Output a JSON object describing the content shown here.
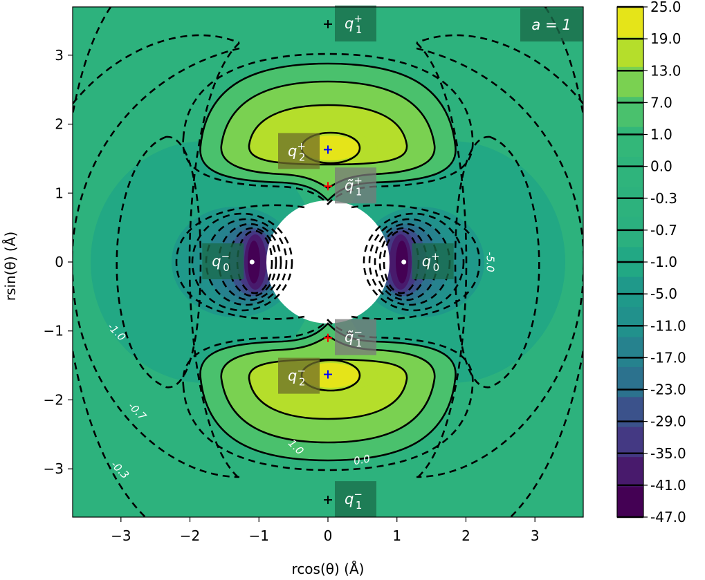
{
  "chart_data": {
    "type": "contour",
    "xlabel": "rcos(θ) (Å)",
    "ylabel": "rsin(θ) (Å)",
    "xlim": [
      -3.7,
      3.7
    ],
    "ylim": [
      -3.7,
      3.7
    ],
    "x_ticks": [
      -3,
      -2,
      -1,
      0,
      1,
      2,
      3
    ],
    "y_ticks": [
      3,
      2,
      1,
      0,
      -1,
      -2,
      -3
    ],
    "x_tick_labels": [
      "−3",
      "−2",
      "−1",
      "0",
      "1",
      "2",
      "3"
    ],
    "y_tick_labels": [
      "3",
      "2",
      "1",
      "0",
      "−1",
      "−2",
      "−3"
    ],
    "parameter_label": "a = 1",
    "excluded_disk_radius": 0.9,
    "colorbar": {
      "levels": [
        25.0,
        19.0,
        13.0,
        7.0,
        1.0,
        0.0,
        -0.3,
        -0.7,
        -1.0,
        -5.0,
        -11.0,
        -17.0,
        -23.0,
        -29.0,
        -35.0,
        -41.0,
        -47.0
      ],
      "labels": [
        "25.0",
        "19.0",
        "13.0",
        "7.0",
        "1.0",
        "0.0",
        "-0.3",
        "-0.7",
        "-1.0",
        "-5.0",
        "-11.0",
        "-17.0",
        "-23.0",
        "-29.0",
        "-35.0",
        "-41.0",
        "-47.0"
      ],
      "colors": [
        "#e5e419",
        "#b5de2b",
        "#7ad151",
        "#4ac16d",
        "#33b779",
        "#2fb47c",
        "#2db27d",
        "#2bb07f",
        "#22a884",
        "#1f998a",
        "#21918c",
        "#26828e",
        "#2c728e",
        "#3b528b",
        "#443983",
        "#481a6c",
        "#440154"
      ]
    },
    "contour_labels": [
      {
        "text": "-5.0",
        "x": 2.3,
        "y": 0.0
      },
      {
        "text": "-1.0",
        "x": -3.1,
        "y": -1.05
      },
      {
        "text": "-0.7",
        "x": -2.8,
        "y": -2.2
      },
      {
        "text": "-0.3",
        "x": -3.05,
        "y": -3.05
      },
      {
        "text": "1.0",
        "x": -0.5,
        "y": -2.72
      },
      {
        "text": "0.0",
        "x": 0.5,
        "y": -2.92
      }
    ],
    "critical_points": [
      {
        "name": "q1+",
        "label": "q",
        "sub": "1",
        "sup": "+",
        "x": 0.0,
        "y": 3.45,
        "marker": "black"
      },
      {
        "name": "q2+",
        "label": "q",
        "sub": "2",
        "sup": "+",
        "x": 0.0,
        "y": 1.63,
        "marker": "blue"
      },
      {
        "name": "q1tilde+",
        "label": "q̃",
        "sub": "1",
        "sup": "+",
        "x": 0.0,
        "y": 1.1,
        "marker": "red"
      },
      {
        "name": "q0-",
        "label": "q",
        "sub": "0",
        "sup": "−",
        "x": -1.1,
        "y": 0.0,
        "marker": "white"
      },
      {
        "name": "q0+",
        "label": "q",
        "sub": "0",
        "sup": "+",
        "x": 1.1,
        "y": 0.0,
        "marker": "white"
      },
      {
        "name": "q1tilde-",
        "label": "q̃",
        "sub": "1",
        "sup": "−",
        "x": 0.0,
        "y": -1.1,
        "marker": "red"
      },
      {
        "name": "q2-",
        "label": "q",
        "sub": "2",
        "sup": "−",
        "x": 0.0,
        "y": -1.63,
        "marker": "blue"
      },
      {
        "name": "q1-",
        "label": "q",
        "sub": "1",
        "sup": "−",
        "x": 0.0,
        "y": -3.45,
        "marker": "black"
      }
    ]
  }
}
